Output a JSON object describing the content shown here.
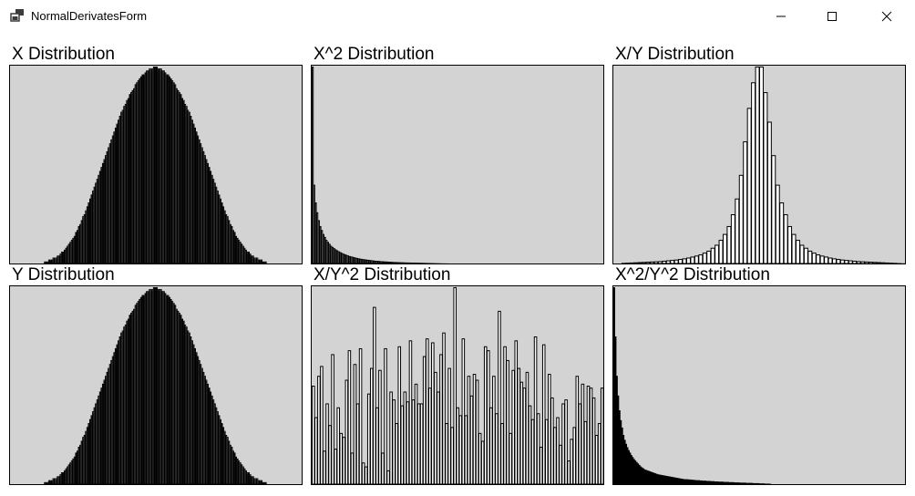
{
  "window": {
    "title": "NormalDerivatesForm",
    "icon": "app-window-icon"
  },
  "controls": {
    "minimize": "minimize-icon",
    "maximize": "maximize-icon",
    "close": "close-icon"
  },
  "colors": {
    "plot_background": "#d3d3d3",
    "bar_fill": "#ffffff",
    "bar_stroke": "#000000"
  },
  "chart_data": [
    {
      "id": "x",
      "type": "bar",
      "title": "X Distribution",
      "values": [
        0,
        0,
        0,
        0,
        0,
        0,
        0,
        0,
        0,
        0,
        0,
        0,
        0,
        0,
        0,
        0,
        0,
        0,
        0,
        0,
        0,
        0,
        0,
        0,
        1,
        1,
        1,
        2,
        2,
        2,
        3,
        3,
        3,
        4,
        4,
        5,
        6,
        6,
        7,
        8,
        9,
        10,
        11,
        12,
        13,
        14,
        16,
        17,
        19,
        20,
        22,
        24,
        25,
        27,
        29,
        31,
        33,
        35,
        37,
        39,
        41,
        43,
        45,
        47,
        49,
        51,
        53,
        55,
        57,
        59,
        61,
        63,
        65,
        67,
        69,
        71,
        73,
        75,
        77,
        78,
        80,
        81,
        83,
        84,
        86,
        87,
        88,
        89,
        91,
        92,
        93,
        94,
        95,
        96,
        96,
        97,
        98,
        98,
        99,
        99,
        99,
        100,
        100,
        100,
        99,
        99,
        99,
        98,
        98,
        97,
        96,
        96,
        95,
        94,
        93,
        92,
        91,
        89,
        88,
        87,
        86,
        84,
        83,
        81,
        80,
        78,
        77,
        75,
        73,
        71,
        69,
        67,
        65,
        63,
        61,
        59,
        57,
        55,
        53,
        51,
        49,
        47,
        45,
        43,
        41,
        39,
        37,
        35,
        33,
        31,
        29,
        27,
        25,
        24,
        22,
        20,
        19,
        17,
        16,
        14,
        13,
        12,
        11,
        10,
        9,
        8,
        7,
        6,
        6,
        5,
        4,
        4,
        3,
        3,
        3,
        2,
        2,
        2,
        1,
        1,
        1,
        0,
        0,
        0,
        0,
        0,
        0,
        0,
        0,
        0,
        0,
        0,
        0,
        0,
        0,
        0,
        0,
        0,
        0,
        0,
        0,
        0,
        0,
        0,
        0,
        0
      ]
    },
    {
      "id": "x2",
      "type": "bar",
      "title": "X^2 Distribution",
      "values": [
        100,
        40,
        31,
        26,
        22,
        19,
        17,
        15,
        13.5,
        12,
        11,
        10,
        9,
        8.4,
        7.8,
        7.2,
        6.7,
        6.2,
        5.8,
        5.4,
        5,
        4.7,
        4.4,
        4.1,
        3.8,
        3.6,
        3.4,
        3.2,
        3,
        2.8,
        2.6,
        2.5,
        2.3,
        2.2,
        2.1,
        2,
        1.9,
        1.8,
        1.7,
        1.6,
        1.5,
        1.4,
        1.35,
        1.3,
        1.2,
        1.15,
        1.1,
        1.05,
        1,
        0.95,
        0.9,
        0.85,
        0.8,
        0.75,
        0.72,
        0.69,
        0.66,
        0.63,
        0.6,
        0.57,
        0.54,
        0.52,
        0.5,
        0.48,
        0.46,
        0.44,
        0.42,
        0.4,
        0.38,
        0.36,
        0.34,
        0.32,
        0.3,
        0.28,
        0.26,
        0.24,
        0.22,
        0.2,
        0.18,
        0.16,
        0.14,
        0.12,
        0.1,
        0.08,
        0.06,
        0.05,
        0.04,
        0.03,
        0.02,
        0.01,
        0,
        0,
        0,
        0,
        0,
        0,
        0,
        0,
        0,
        0,
        0,
        0,
        0,
        0,
        0,
        0,
        0,
        0,
        0,
        0,
        0,
        0,
        0,
        0,
        0,
        0,
        0,
        0,
        0,
        0,
        0,
        0,
        0,
        0,
        0,
        0,
        0,
        0,
        0,
        0,
        0,
        0,
        0,
        0,
        0,
        0,
        0,
        0,
        0,
        0,
        0,
        0,
        0,
        0,
        0,
        0,
        0,
        0,
        0,
        0,
        0,
        0,
        0,
        0,
        0,
        0,
        0,
        0,
        0,
        0,
        0,
        0,
        0,
        0,
        0,
        0,
        0,
        0,
        0,
        0,
        0,
        0,
        0,
        0,
        0,
        0,
        0,
        0,
        0,
        0,
        0,
        0,
        0,
        0,
        0,
        0,
        0,
        0,
        0,
        0
      ]
    },
    {
      "id": "xy",
      "type": "bar",
      "title": "X/Y Distribution",
      "values": [
        0,
        0,
        0.3,
        0.4,
        0.5,
        0.6,
        0.7,
        0.8,
        0.9,
        1,
        1.1,
        1.2,
        1.4,
        1.6,
        1.8,
        2,
        2.3,
        2.6,
        3,
        3.5,
        4,
        4.6,
        5.5,
        6.5,
        8,
        9.5,
        12,
        15,
        19,
        25,
        33,
        45,
        62,
        79,
        92,
        100,
        100,
        87,
        72,
        55,
        40,
        31,
        25,
        19,
        15,
        12,
        9.5,
        8,
        6.5,
        5.5,
        4.6,
        4,
        3.5,
        3,
        2.6,
        2.3,
        2,
        1.8,
        1.6,
        1.4,
        1.2,
        1.1,
        1,
        0.9,
        0.8,
        0.7,
        0.6,
        0.5,
        0.4,
        0.3,
        0.2,
        0.1
      ]
    },
    {
      "id": "y",
      "type": "bar",
      "title": "Y Distribution",
      "values": [
        0,
        0,
        0,
        0,
        0,
        0,
        0,
        0,
        0,
        0,
        0,
        0,
        0,
        0,
        0,
        0,
        0,
        0,
        0,
        0,
        0,
        0,
        0,
        0,
        1,
        1,
        1,
        2,
        2,
        2,
        3,
        3,
        3,
        4,
        4,
        5,
        6,
        6,
        7,
        8,
        9,
        10,
        11,
        12,
        13,
        14,
        16,
        17,
        19,
        20,
        22,
        24,
        25,
        27,
        29,
        31,
        33,
        35,
        37,
        39,
        41,
        43,
        45,
        47,
        49,
        51,
        53,
        55,
        57,
        59,
        61,
        63,
        65,
        67,
        69,
        71,
        73,
        75,
        77,
        78,
        80,
        81,
        83,
        84,
        86,
        87,
        88,
        89,
        91,
        92,
        93,
        94,
        95,
        96,
        96,
        97,
        98,
        98,
        99,
        99,
        99,
        100,
        100,
        100,
        99,
        99,
        99,
        98,
        98,
        97,
        96,
        96,
        95,
        94,
        93,
        92,
        91,
        89,
        88,
        87,
        86,
        84,
        83,
        81,
        80,
        78,
        77,
        75,
        73,
        71,
        69,
        67,
        65,
        63,
        61,
        59,
        57,
        55,
        53,
        51,
        49,
        47,
        45,
        43,
        41,
        39,
        37,
        35,
        33,
        31,
        29,
        27,
        25,
        24,
        22,
        20,
        19,
        17,
        16,
        14,
        13,
        12,
        11,
        10,
        9,
        8,
        7,
        6,
        6,
        5,
        4,
        4,
        3,
        3,
        3,
        2,
        2,
        2,
        1,
        1,
        1,
        0,
        0,
        0,
        0,
        0,
        0,
        0,
        0,
        0,
        0,
        0,
        0,
        0,
        0,
        0,
        0,
        0,
        0,
        0,
        0,
        0,
        0,
        0,
        0,
        0
      ]
    },
    {
      "id": "xy2",
      "type": "bar",
      "title": "X/Y^2 Distribution",
      "values": [
        50,
        34,
        55,
        60,
        17,
        41,
        30,
        66,
        18,
        39,
        26,
        24,
        53,
        68,
        16,
        61,
        41,
        69,
        11,
        9,
        46,
        59,
        90,
        39,
        58,
        16,
        69,
        7,
        47,
        43,
        31,
        70,
        40,
        47,
        42,
        73,
        43,
        51,
        41,
        41,
        65,
        74,
        49,
        72,
        57,
        47,
        66,
        77,
        31,
        59,
        29,
        100,
        39,
        35,
        74,
        35,
        55,
        45,
        56,
        53,
        26,
        22,
        70,
        68,
        39,
        55,
        36,
        88,
        31,
        70,
        63,
        26,
        58,
        73,
        59,
        52,
        49,
        57,
        40,
        33,
        75,
        36,
        19,
        71,
        33,
        56,
        44,
        29,
        34,
        20,
        41,
        43,
        12,
        23,
        29,
        55,
        41,
        51,
        32,
        50,
        49,
        44,
        25,
        31,
        49
      ]
    },
    {
      "id": "x2y2",
      "type": "bar",
      "title": "X^2/Y^2 Distribution",
      "values": [
        40,
        30,
        22,
        18,
        15,
        13,
        11.5,
        10,
        9,
        8.2,
        7.5,
        6.9,
        6.4,
        5.9,
        5.5,
        5.1,
        4.8,
        4.5,
        4.2,
        3.9,
        3.6,
        3.4,
        3.2,
        3,
        2.9,
        2.8,
        2.7,
        2.6,
        2.5,
        2.4,
        2.3,
        2.2,
        2.1,
        2,
        1.95,
        1.9,
        1.85,
        1.8,
        1.75,
        1.7,
        1.65,
        1.6,
        1.55,
        1.5,
        1.45,
        1.4,
        1.35,
        1.3,
        1.25,
        1.2,
        1.15,
        1.1,
        1.05,
        1,
        1,
        1,
        0.95,
        0.95,
        0.9,
        0.9,
        0.85,
        0.85,
        0.8,
        0.8,
        0.8,
        0.75,
        0.75,
        0.7,
        0.7,
        0.7,
        0.65,
        0.65,
        0.65,
        0.6,
        0.6,
        0.6,
        0.55,
        0.55,
        0.55,
        0.5,
        0.5,
        0.5,
        0.5,
        0.45,
        0.45,
        0.45,
        0.45,
        0.4,
        0.4,
        0.4,
        0.4,
        0.35,
        0.35,
        0.35,
        0.35,
        0.3,
        0.3,
        0.3,
        0.3,
        0.3,
        0.25,
        0.25,
        0.25,
        0.25,
        0.25,
        0.2,
        0.2,
        0.2,
        0.2,
        0.2,
        0.15,
        0.15,
        0.15,
        0.15,
        0.1,
        0.1,
        0.1,
        0.1,
        0.05,
        0,
        0,
        0,
        0,
        0,
        0,
        0,
        0,
        0,
        0,
        0,
        0,
        0,
        0,
        0,
        0,
        0,
        0,
        0,
        0,
        0,
        0,
        0,
        0,
        0,
        0,
        0,
        0,
        0,
        0,
        0,
        0,
        0,
        0,
        0,
        0,
        0,
        0,
        0,
        0,
        0,
        0,
        0,
        0,
        0,
        0,
        0,
        0,
        0,
        0,
        0,
        0,
        0,
        0,
        0,
        0,
        0,
        0,
        0,
        0,
        0,
        0,
        0,
        0,
        0,
        0,
        0,
        0,
        0,
        0,
        0,
        0,
        0,
        0,
        0,
        0,
        0,
        0,
        0,
        0,
        0,
        0,
        0,
        0,
        0,
        0,
        0,
        0,
        0,
        0,
        0,
        0,
        0,
        0,
        0,
        0,
        0,
        0,
        0,
        0,
        0
      ]
    }
  ]
}
